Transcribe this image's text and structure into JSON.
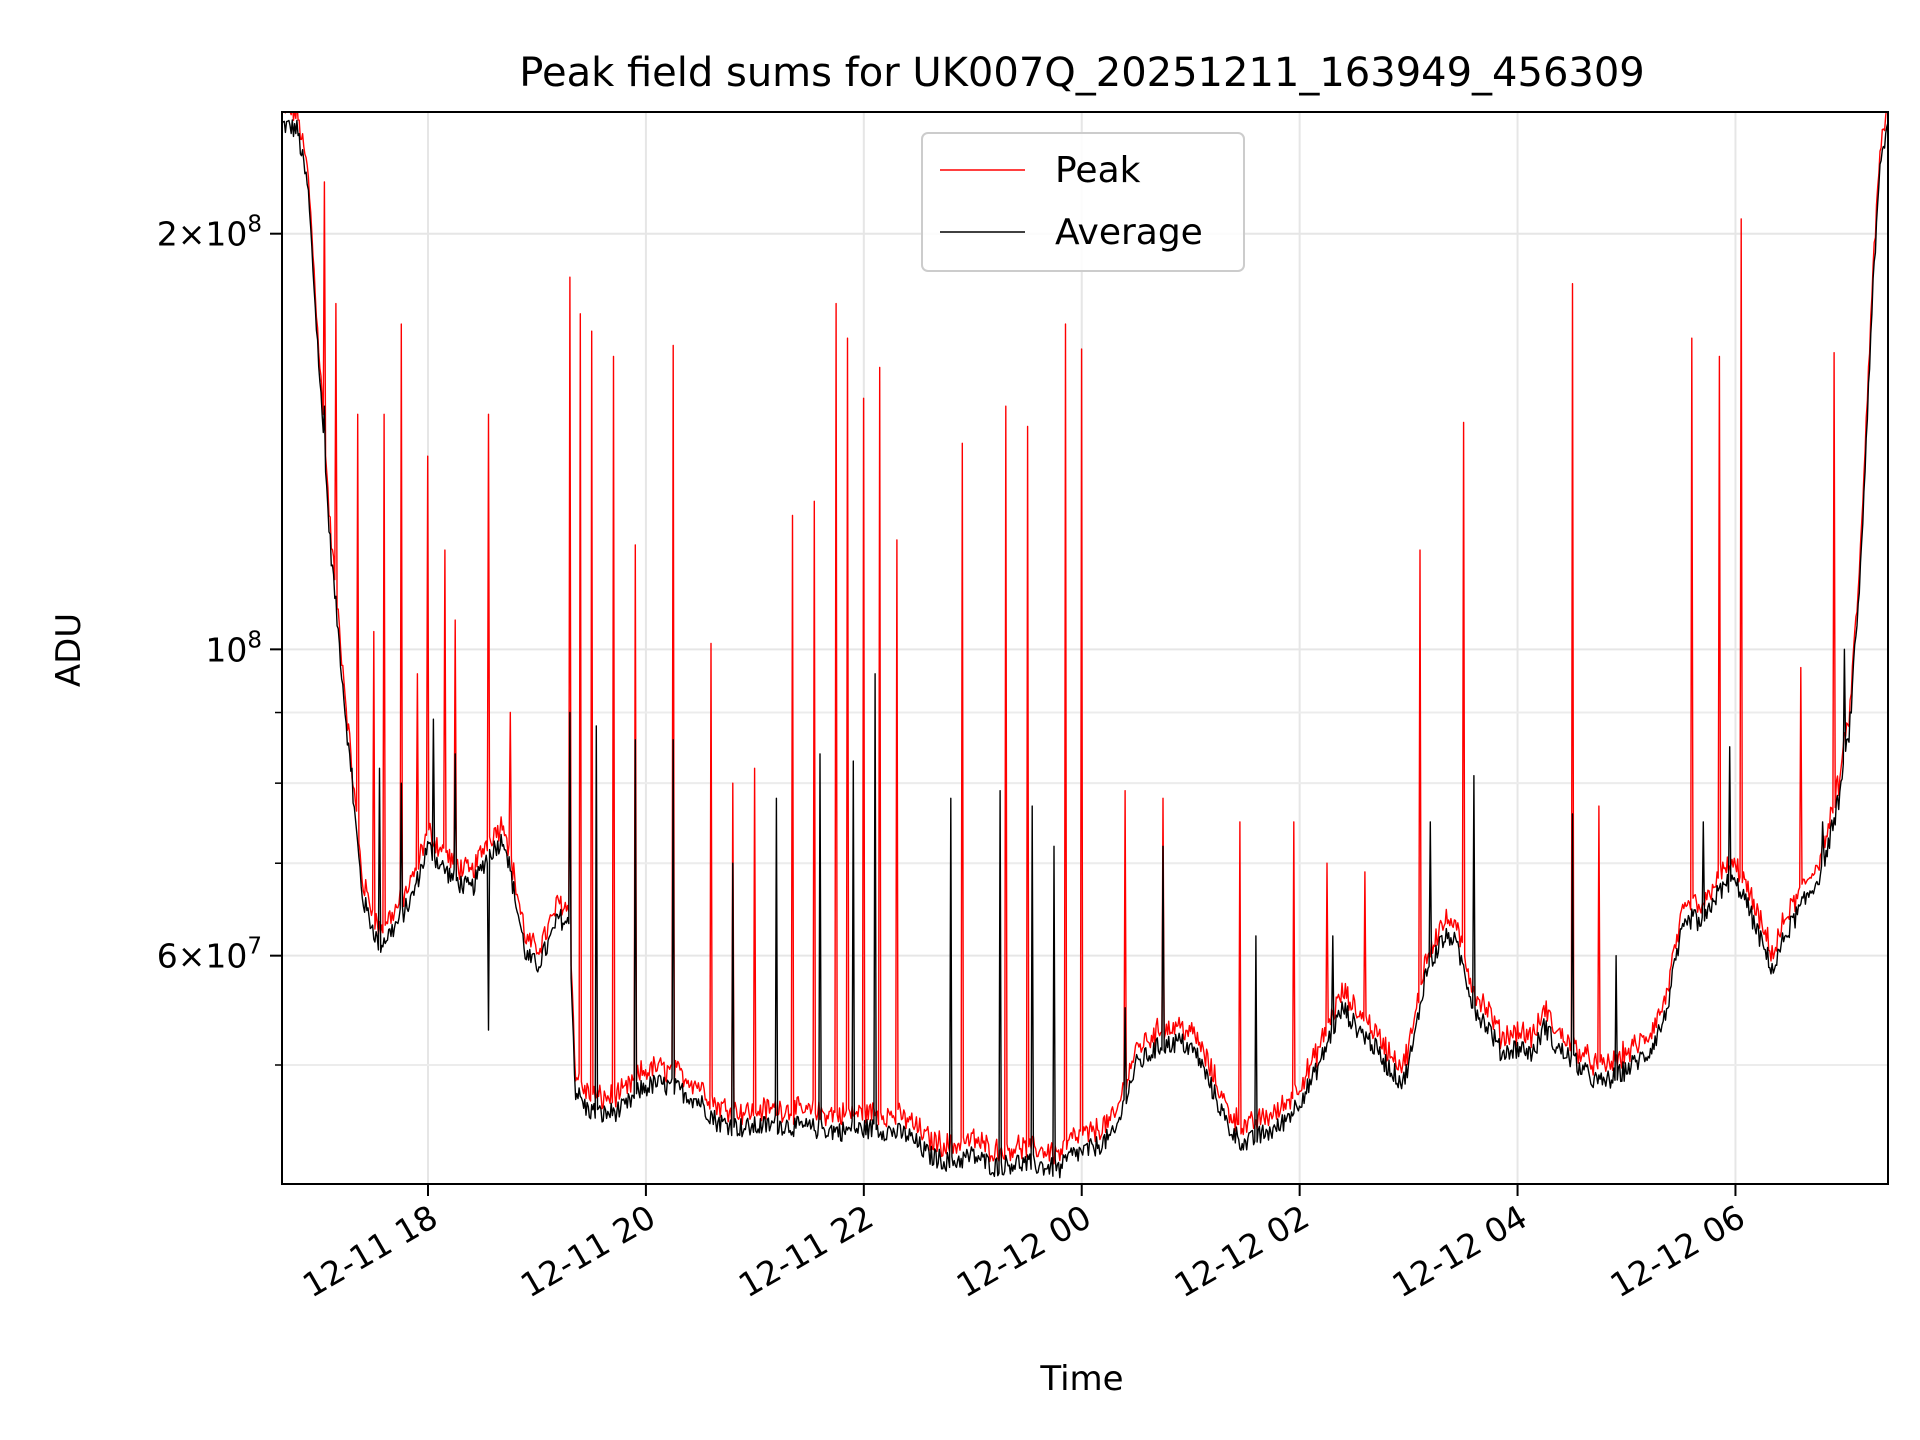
{
  "chart_data": {
    "type": "line",
    "title": "Peak field sums for UK007Q_20251211_163949_456309",
    "xlabel": "Time",
    "ylabel": "ADU",
    "yscale": "log",
    "ylim": [
      41000000,
      245000000
    ],
    "xlim_hours": [
      16.66,
      31.4
    ],
    "grid": true,
    "legend_position": "upper center",
    "x_ticks": [
      {
        "hour": 18,
        "label": "12-11 18"
      },
      {
        "hour": 20,
        "label": "12-11 20"
      },
      {
        "hour": 22,
        "label": "12-11 22"
      },
      {
        "hour": 24,
        "label": "12-12 00"
      },
      {
        "hour": 26,
        "label": "12-12 02"
      },
      {
        "hour": 28,
        "label": "12-12 04"
      },
      {
        "hour": 30,
        "label": "12-12 06"
      }
    ],
    "y_ticks": [
      {
        "value": 60000000,
        "mantissa": "6",
        "exponent": "7",
        "times": "×10"
      },
      {
        "value": 100000000,
        "mantissa": "",
        "exponent": "8",
        "times": "10"
      },
      {
        "value": 200000000,
        "mantissa": "2",
        "exponent": "8",
        "times": "×10"
      }
    ],
    "y_minor_ticks": [
      50000000,
      70000000,
      80000000,
      90000000
    ],
    "series": [
      {
        "name": "Average",
        "color": "#000000",
        "baseline": [
          [
            16.66,
            240000000
          ],
          [
            16.8,
            238000000
          ],
          [
            16.9,
            215000000
          ],
          [
            17.0,
            160000000
          ],
          [
            17.1,
            120000000
          ],
          [
            17.2,
            98000000
          ],
          [
            17.3,
            80000000
          ],
          [
            17.4,
            66000000
          ],
          [
            17.55,
            61000000
          ],
          [
            17.7,
            63000000
          ],
          [
            17.85,
            66000000
          ],
          [
            18.0,
            72000000
          ],
          [
            18.1,
            70000000
          ],
          [
            18.25,
            68000000
          ],
          [
            18.4,
            67000000
          ],
          [
            18.55,
            71000000
          ],
          [
            18.7,
            73000000
          ],
          [
            18.8,
            66000000
          ],
          [
            18.9,
            60000000
          ],
          [
            19.0,
            59000000
          ],
          [
            19.1,
            61000000
          ],
          [
            19.2,
            64000000
          ],
          [
            19.3,
            63000000
          ],
          [
            19.35,
            48000000
          ],
          [
            19.45,
            46500000
          ],
          [
            19.6,
            46000000
          ],
          [
            19.8,
            46500000
          ],
          [
            19.95,
            48000000
          ],
          [
            20.1,
            48500000
          ],
          [
            20.3,
            48000000
          ],
          [
            20.5,
            47000000
          ],
          [
            20.65,
            45500000
          ],
          [
            20.9,
            45000000
          ],
          [
            21.2,
            45300000
          ],
          [
            21.5,
            45000000
          ],
          [
            21.8,
            44800000
          ],
          [
            22.1,
            45000000
          ],
          [
            22.4,
            44500000
          ],
          [
            22.6,
            43000000
          ],
          [
            22.8,
            42500000
          ],
          [
            23.0,
            43000000
          ],
          [
            23.2,
            42200000
          ],
          [
            23.4,
            42500000
          ],
          [
            23.6,
            42300000
          ],
          [
            23.8,
            42000000
          ],
          [
            23.9,
            43000000
          ],
          [
            24.1,
            43500000
          ],
          [
            24.3,
            44500000
          ],
          [
            24.5,
            50000000
          ],
          [
            24.7,
            51500000
          ],
          [
            24.9,
            52000000
          ],
          [
            25.05,
            51000000
          ],
          [
            25.2,
            48000000
          ],
          [
            25.35,
            45000000
          ],
          [
            25.5,
            43800000
          ],
          [
            25.65,
            44500000
          ],
          [
            25.8,
            45000000
          ],
          [
            25.95,
            46500000
          ],
          [
            26.1,
            48500000
          ],
          [
            26.2,
            50500000
          ],
          [
            26.3,
            53000000
          ],
          [
            26.4,
            55000000
          ],
          [
            26.5,
            53500000
          ],
          [
            26.65,
            52000000
          ],
          [
            26.8,
            50000000
          ],
          [
            26.95,
            48500000
          ],
          [
            27.05,
            52000000
          ],
          [
            27.15,
            58000000
          ],
          [
            27.3,
            61500000
          ],
          [
            27.4,
            62000000
          ],
          [
            27.5,
            59000000
          ],
          [
            27.6,
            55000000
          ],
          [
            27.75,
            53000000
          ],
          [
            27.85,
            51000000
          ],
          [
            28.0,
            51500000
          ],
          [
            28.15,
            51000000
          ],
          [
            28.25,
            53500000
          ],
          [
            28.35,
            51500000
          ],
          [
            28.5,
            50500000
          ],
          [
            28.6,
            49500000
          ],
          [
            28.75,
            48500000
          ],
          [
            28.9,
            49000000
          ],
          [
            29.05,
            50000000
          ],
          [
            29.2,
            51000000
          ],
          [
            29.35,
            54000000
          ],
          [
            29.5,
            62000000
          ],
          [
            29.6,
            64000000
          ],
          [
            29.7,
            63000000
          ],
          [
            29.8,
            66000000
          ],
          [
            29.95,
            68000000
          ],
          [
            30.05,
            67000000
          ],
          [
            30.15,
            64000000
          ],
          [
            30.25,
            61000000
          ],
          [
            30.35,
            58500000
          ],
          [
            30.45,
            62000000
          ],
          [
            30.6,
            65000000
          ],
          [
            30.75,
            68000000
          ],
          [
            30.85,
            72000000
          ],
          [
            30.95,
            78000000
          ],
          [
            31.05,
            88000000
          ],
          [
            31.15,
            115000000
          ],
          [
            31.25,
            175000000
          ],
          [
            31.33,
            225000000
          ],
          [
            31.4,
            240000000
          ]
        ],
        "spikes": [
          [
            17.05,
            150000000
          ],
          [
            17.3,
            82000000
          ],
          [
            17.55,
            82000000
          ],
          [
            17.75,
            80000000
          ],
          [
            18.05,
            89000000
          ],
          [
            18.25,
            84000000
          ],
          [
            18.55,
            100000000
          ],
          [
            18.55,
            53000000
          ],
          [
            19.3,
            90000000
          ],
          [
            19.55,
            88000000
          ],
          [
            19.9,
            86000000
          ],
          [
            20.25,
            86000000
          ],
          [
            20.8,
            70000000
          ],
          [
            21.2,
            78000000
          ],
          [
            21.6,
            84000000
          ],
          [
            21.9,
            83000000
          ],
          [
            22.1,
            96000000
          ],
          [
            22.8,
            78000000
          ],
          [
            23.25,
            79000000
          ],
          [
            23.55,
            77000000
          ],
          [
            23.75,
            72000000
          ],
          [
            24.4,
            55000000
          ],
          [
            24.75,
            72000000
          ],
          [
            25.6,
            62000000
          ],
          [
            26.3,
            62000000
          ],
          [
            27.2,
            75000000
          ],
          [
            27.6,
            81000000
          ],
          [
            28.5,
            76000000
          ],
          [
            28.9,
            60000000
          ],
          [
            29.7,
            75000000
          ],
          [
            29.95,
            85000000
          ],
          [
            30.8,
            75000000
          ],
          [
            31.0,
            100000000
          ]
        ]
      },
      {
        "name": "Peak",
        "color": "#ff0000",
        "offset_ratio": 1.02,
        "spikes": [
          [
            17.05,
            218000000
          ],
          [
            17.15,
            178000000
          ],
          [
            17.35,
            148000000
          ],
          [
            17.5,
            103000000
          ],
          [
            17.6,
            148000000
          ],
          [
            17.75,
            172000000
          ],
          [
            17.9,
            96000000
          ],
          [
            18.0,
            138000000
          ],
          [
            18.15,
            118000000
          ],
          [
            18.25,
            105000000
          ],
          [
            18.55,
            148000000
          ],
          [
            18.75,
            90000000
          ],
          [
            19.3,
            186000000
          ],
          [
            19.4,
            175000000
          ],
          [
            19.5,
            170000000
          ],
          [
            19.7,
            163000000
          ],
          [
            19.9,
            119000000
          ],
          [
            20.25,
            166000000
          ],
          [
            20.6,
            101000000
          ],
          [
            20.8,
            80000000
          ],
          [
            21.0,
            82000000
          ],
          [
            21.35,
            125000000
          ],
          [
            21.55,
            128000000
          ],
          [
            21.75,
            178000000
          ],
          [
            21.85,
            168000000
          ],
          [
            22.0,
            152000000
          ],
          [
            22.15,
            160000000
          ],
          [
            22.3,
            120000000
          ],
          [
            22.9,
            141000000
          ],
          [
            23.3,
            150000000
          ],
          [
            23.5,
            145000000
          ],
          [
            23.85,
            172000000
          ],
          [
            24.0,
            165000000
          ],
          [
            24.4,
            79000000
          ],
          [
            24.75,
            78000000
          ],
          [
            25.45,
            75000000
          ],
          [
            25.95,
            75000000
          ],
          [
            26.25,
            70000000
          ],
          [
            26.6,
            69000000
          ],
          [
            27.1,
            118000000
          ],
          [
            27.5,
            146000000
          ],
          [
            28.5,
            184000000
          ],
          [
            28.75,
            77000000
          ],
          [
            29.6,
            168000000
          ],
          [
            29.85,
            163000000
          ],
          [
            30.05,
            205000000
          ],
          [
            30.6,
            97000000
          ],
          [
            30.9,
            164000000
          ],
          [
            31.25,
            180000000
          ]
        ]
      }
    ]
  }
}
